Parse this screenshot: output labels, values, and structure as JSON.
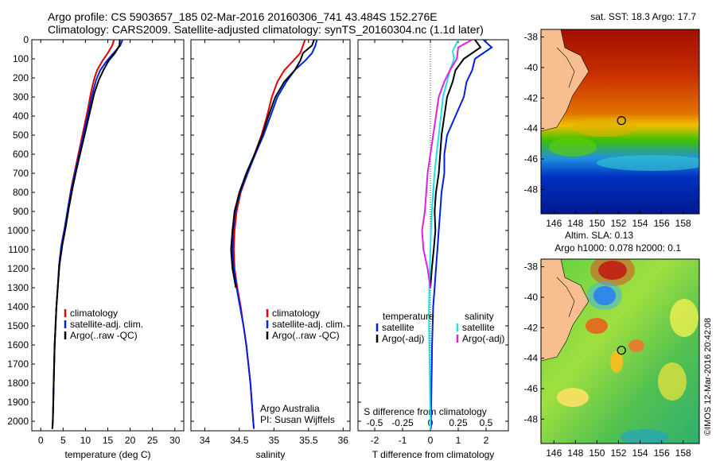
{
  "header": {
    "line1": "Argo profile: CS 5903657_185 02-Mar-2016 20160306_741 43.484S 152.276E",
    "line2": "Climatology: CARS2009. Satellite-adjusted climatology: synTS_20160304.nc (1.1d later)"
  },
  "footer": {
    "imos": "©IMOS 12-Mar-2016 20:42:08",
    "credit1": "Argo Australia",
    "credit2": "PI: Susan Wijffels"
  },
  "colors": {
    "climatology": "#e00000",
    "satellite": "#0020e0",
    "argo": "#000000",
    "salinity_satellite": "#20e0e0",
    "salinity_argo": "#e020e0"
  },
  "depth_axis": {
    "ylim": [
      0,
      2050
    ],
    "ticks": [
      0,
      100,
      200,
      300,
      400,
      500,
      600,
      700,
      800,
      900,
      1000,
      1100,
      1200,
      1300,
      1400,
      1500,
      1600,
      1700,
      1800,
      1900,
      2000
    ]
  },
  "chart_data": [
    {
      "type": "line",
      "xlabel": "temperature (deg C)",
      "xlim": [
        -2,
        32
      ],
      "xticks": [
        0,
        5,
        10,
        15,
        20,
        25,
        30
      ],
      "legend": [
        "climatology",
        "satellite-adj. clim.",
        "Argo(..raw -QC)"
      ],
      "series": [
        {
          "name": "climatology",
          "color": "climatology",
          "points": [
            [
              16.4,
              0
            ],
            [
              16.0,
              30
            ],
            [
              15.0,
              70
            ],
            [
              13.8,
              110
            ],
            [
              12.6,
              160
            ],
            [
              11.9,
              210
            ],
            [
              11.2,
              280
            ],
            [
              10.4,
              380
            ],
            [
              9.5,
              480
            ],
            [
              8.6,
              580
            ],
            [
              7.7,
              680
            ],
            [
              6.8,
              780
            ],
            [
              6.1,
              880
            ],
            [
              5.4,
              980
            ],
            [
              4.6,
              1080
            ],
            [
              4.1,
              1180
            ],
            [
              3.8,
              1300
            ],
            [
              3.5,
              1400
            ],
            [
              3.3,
              1500
            ],
            [
              3.1,
              1600
            ],
            [
              3.0,
              1700
            ],
            [
              2.9,
              1800
            ],
            [
              2.8,
              1900
            ],
            [
              2.7,
              2000
            ],
            [
              2.6,
              2040
            ]
          ]
        },
        {
          "name": "satellite-adj. clim.",
          "color": "satellite",
          "points": [
            [
              18.3,
              0
            ],
            [
              17.8,
              30
            ],
            [
              16.3,
              70
            ],
            [
              14.8,
              110
            ],
            [
              13.3,
              160
            ],
            [
              12.4,
              210
            ],
            [
              11.6,
              280
            ],
            [
              10.7,
              380
            ],
            [
              9.7,
              480
            ],
            [
              8.8,
              580
            ],
            [
              7.8,
              680
            ],
            [
              6.9,
              780
            ],
            [
              6.1,
              880
            ],
            [
              5.4,
              980
            ],
            [
              4.6,
              1080
            ],
            [
              4.1,
              1180
            ],
            [
              3.8,
              1300
            ],
            [
              3.5,
              1400
            ],
            [
              3.3,
              1500
            ],
            [
              3.1,
              1600
            ],
            [
              3.0,
              1700
            ],
            [
              2.9,
              1800
            ],
            [
              2.8,
              1900
            ],
            [
              2.7,
              2000
            ],
            [
              2.6,
              2040
            ]
          ]
        },
        {
          "name": "Argo(..raw -QC)",
          "color": "argo",
          "points": [
            [
              17.7,
              0
            ],
            [
              17.6,
              30
            ],
            [
              16.6,
              70
            ],
            [
              15.2,
              110
            ],
            [
              14.0,
              160
            ],
            [
              13.0,
              210
            ],
            [
              12.0,
              280
            ],
            [
              11.0,
              380
            ],
            [
              10.0,
              480
            ],
            [
              9.0,
              580
            ],
            [
              8.0,
              680
            ],
            [
              7.1,
              780
            ],
            [
              6.3,
              880
            ],
            [
              5.6,
              980
            ],
            [
              4.8,
              1080
            ],
            [
              4.2,
              1180
            ],
            [
              3.8,
              1300
            ],
            [
              3.5,
              1400
            ],
            [
              3.3,
              1500
            ],
            [
              3.1,
              1600
            ],
            [
              3.0,
              1700
            ],
            [
              2.9,
              1800
            ],
            [
              2.8,
              1900
            ],
            [
              2.7,
              2000
            ],
            [
              2.6,
              2040
            ]
          ]
        }
      ]
    },
    {
      "type": "line",
      "xlabel": "salinity",
      "xlim": [
        33.8,
        36.1
      ],
      "xticks": [
        34,
        34.5,
        35,
        35.5,
        36
      ],
      "legend": [
        "climatology",
        "satellite-adj. clim.",
        "Argo(..raw -QC)"
      ],
      "series": [
        {
          "name": "climatology",
          "color": "climatology",
          "points": [
            [
              35.45,
              0
            ],
            [
              35.42,
              30
            ],
            [
              35.38,
              70
            ],
            [
              35.28,
              110
            ],
            [
              35.15,
              160
            ],
            [
              35.05,
              220
            ],
            [
              34.97,
              300
            ],
            [
              34.9,
              400
            ],
            [
              34.82,
              500
            ],
            [
              34.72,
              600
            ],
            [
              34.62,
              700
            ],
            [
              34.52,
              800
            ],
            [
              34.46,
              900
            ],
            [
              34.43,
              1000
            ],
            [
              34.42,
              1100
            ],
            [
              34.43,
              1200
            ],
            [
              34.47,
              1300
            ],
            [
              34.52,
              1400
            ],
            [
              34.56,
              1500
            ],
            [
              34.6,
              1600
            ],
            [
              34.63,
              1700
            ],
            [
              34.66,
              1800
            ],
            [
              34.68,
              1900
            ],
            [
              34.7,
              2000
            ],
            [
              34.71,
              2040
            ]
          ]
        },
        {
          "name": "satellite-adj. clim.",
          "color": "satellite",
          "points": [
            [
              35.62,
              0
            ],
            [
              35.6,
              30
            ],
            [
              35.55,
              70
            ],
            [
              35.45,
              110
            ],
            [
              35.3,
              160
            ],
            [
              35.18,
              220
            ],
            [
              35.05,
              300
            ],
            [
              34.95,
              400
            ],
            [
              34.85,
              500
            ],
            [
              34.73,
              600
            ],
            [
              34.62,
              700
            ],
            [
              34.51,
              800
            ],
            [
              34.44,
              900
            ],
            [
              34.41,
              1000
            ],
            [
              34.4,
              1100
            ],
            [
              34.42,
              1200
            ],
            [
              34.46,
              1300
            ],
            [
              34.51,
              1400
            ],
            [
              34.56,
              1500
            ],
            [
              34.6,
              1600
            ],
            [
              34.63,
              1700
            ],
            [
              34.66,
              1800
            ],
            [
              34.68,
              1900
            ],
            [
              34.7,
              2000
            ],
            [
              34.71,
              2040
            ]
          ]
        },
        {
          "name": "Argo(..raw -QC)",
          "color": "argo",
          "points": [
            [
              35.58,
              0
            ],
            [
              35.55,
              30
            ],
            [
              35.42,
              70
            ],
            [
              35.38,
              110
            ],
            [
              35.3,
              160
            ],
            [
              35.15,
              220
            ],
            [
              35.02,
              300
            ],
            [
              34.92,
              400
            ],
            [
              34.83,
              500
            ],
            [
              34.72,
              600
            ],
            [
              34.6,
              700
            ],
            [
              34.5,
              800
            ],
            [
              34.43,
              900
            ],
            [
              34.4,
              1000
            ],
            [
              34.38,
              1100
            ],
            [
              34.4,
              1200
            ],
            [
              34.45,
              1300
            ]
          ]
        }
      ]
    },
    {
      "type": "line",
      "xlabel": "T difference from climatology",
      "xlabel2": "S difference from climatology",
      "xlim": [
        -2.6,
        2.8
      ],
      "xticks": [
        -2,
        -1,
        0,
        1,
        2
      ],
      "xticks2": [
        -0.5,
        -0.25,
        0,
        0.25,
        0.5
      ],
      "xticks2_labels": [
        "-0.5",
        "-0.25",
        "0",
        "0.25",
        "0.5"
      ],
      "legend_headers": [
        "temperature",
        "salinity"
      ],
      "legend_left": [
        "satellite",
        "Argo(-adj)"
      ],
      "legend_right": [
        "satellite",
        "Argo(-adj)"
      ],
      "series": [
        {
          "name": "T satellite",
          "color": "satellite",
          "points": [
            [
              1.9,
              0
            ],
            [
              2.2,
              40
            ],
            [
              1.6,
              100
            ],
            [
              1.5,
              160
            ],
            [
              1.3,
              220
            ],
            [
              1.2,
              300
            ],
            [
              0.9,
              400
            ],
            [
              0.6,
              500
            ],
            [
              0.5,
              600
            ],
            [
              0.5,
              700
            ],
            [
              0.4,
              800
            ],
            [
              0.35,
              900
            ],
            [
              0.3,
              1000
            ],
            [
              0.25,
              1100
            ],
            [
              0.2,
              1200
            ],
            [
              0.15,
              1300
            ],
            [
              0.1,
              1400
            ],
            [
              0.08,
              1500
            ],
            [
              0.06,
              1600
            ],
            [
              0.05,
              1700
            ],
            [
              0.04,
              1800
            ],
            [
              0.03,
              1900
            ],
            [
              0.02,
              2000
            ],
            [
              0.02,
              2040
            ]
          ]
        },
        {
          "name": "T Argo",
          "color": "argo",
          "points": [
            [
              1.6,
              0
            ],
            [
              1.8,
              40
            ],
            [
              1.2,
              100
            ],
            [
              0.9,
              160
            ],
            [
              0.8,
              220
            ],
            [
              0.6,
              300
            ],
            [
              0.5,
              400
            ],
            [
              0.4,
              500
            ],
            [
              0.35,
              600
            ],
            [
              0.3,
              700
            ],
            [
              0.2,
              800
            ],
            [
              0.15,
              900
            ],
            [
              0.18,
              1000
            ],
            [
              0.12,
              1100
            ],
            [
              0.05,
              1200
            ],
            [
              0.0,
              1300
            ]
          ]
        },
        {
          "name": "S satellite",
          "color": "salinity_satellite",
          "points": [
            [
              1.0,
              0
            ],
            [
              0.8,
              60
            ],
            [
              0.85,
              100
            ],
            [
              0.7,
              160
            ],
            [
              0.6,
              220
            ],
            [
              0.45,
              300
            ],
            [
              0.38,
              400
            ],
            [
              0.3,
              500
            ],
            [
              0.22,
              600
            ],
            [
              0.15,
              700
            ],
            [
              0.1,
              800
            ],
            [
              0.05,
              900
            ],
            [
              0.02,
              1000
            ],
            [
              0.0,
              1100
            ],
            [
              -0.02,
              1200
            ],
            [
              -0.04,
              1300
            ],
            [
              -0.05,
              1400
            ],
            [
              -0.05,
              1500
            ],
            [
              -0.04,
              1600
            ],
            [
              -0.03,
              1700
            ],
            [
              -0.02,
              1800
            ],
            [
              -0.01,
              1900
            ],
            [
              0.0,
              2000
            ],
            [
              0.0,
              2040
            ]
          ]
        },
        {
          "name": "S Argo",
          "color": "salinity_argo",
          "points": [
            [
              1.5,
              0
            ],
            [
              1.0,
              40
            ],
            [
              0.95,
              100
            ],
            [
              0.7,
              160
            ],
            [
              0.5,
              220
            ],
            [
              0.3,
              300
            ],
            [
              0.2,
              400
            ],
            [
              0.1,
              500
            ],
            [
              0.0,
              600
            ],
            [
              -0.1,
              700
            ],
            [
              -0.15,
              800
            ],
            [
              -0.2,
              900
            ],
            [
              -0.3,
              1000
            ],
            [
              -0.25,
              1100
            ],
            [
              -0.1,
              1200
            ],
            [
              0.0,
              1300
            ]
          ]
        }
      ]
    }
  ],
  "maps": [
    {
      "title": "sat. SST: 18.3 Argo: 17.7",
      "xticks": [
        146,
        148,
        150,
        152,
        154,
        156,
        158
      ],
      "yticks": [
        -38,
        -40,
        -42,
        -44,
        -46,
        -48
      ],
      "xlim": [
        144.8,
        159.5
      ],
      "ylim": [
        -49.6,
        -37.5
      ],
      "marker": [
        152.276,
        -43.484
      ]
    },
    {
      "title1": "Altim. SLA: 0.13",
      "title2": "Argo h1000: 0.078 h2000: 0.1",
      "xticks": [
        146,
        148,
        150,
        152,
        154,
        156,
        158
      ],
      "yticks": [
        -38,
        -40,
        -42,
        -44,
        -46,
        -48
      ],
      "xlim": [
        144.8,
        159.5
      ],
      "ylim": [
        -49.6,
        -37.5
      ],
      "marker": [
        152.276,
        -43.484
      ]
    }
  ]
}
